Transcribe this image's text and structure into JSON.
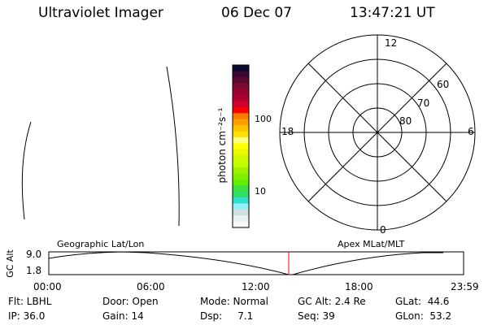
{
  "header": {
    "instrument": "Ultraviolet Imager",
    "date": "06 Dec 07",
    "time": "13:47:21 UT"
  },
  "colorbar": {
    "label": "photon cm⁻²s⁻¹",
    "ticks": [
      "100",
      "10"
    ],
    "colors": [
      "#0a0a30",
      "#3a0a30",
      "#5a0a30",
      "#7a0a30",
      "#9a0030",
      "#b00030",
      "#d00030",
      "#ff0000",
      "#ff7a00",
      "#ffa000",
      "#ffc000",
      "#ffe000",
      "#ffff80",
      "#ffff00",
      "#eaf800",
      "#d0f800",
      "#c0ff00",
      "#a0f000",
      "#80f000",
      "#60f000",
      "#40e040",
      "#30e060",
      "#30e0d0",
      "#90f0f8",
      "#d0e0e0",
      "#e8f0f0",
      "#f8f8f8"
    ]
  },
  "polar": {
    "mlt_labels": {
      "top": "12",
      "bottom": "0",
      "left": "18",
      "right": "6"
    },
    "lat_labels": [
      "60",
      "70",
      "80"
    ]
  },
  "timeline": {
    "left_label": "Geographic Lat/Lon",
    "right_label": "Apex MLat/MLT",
    "y_axis_label": "GC Alt",
    "y_ticks": [
      "9.0",
      "1.8"
    ],
    "x_ticks": [
      "00:00",
      "06:00",
      "12:00",
      "18:00",
      "23:59"
    ],
    "marker_color": "#ff0000"
  },
  "status": {
    "flt": "Flt: LBHL",
    "ip": "IP: 36.0",
    "door": "Door: Open",
    "gain": "Gain: 14",
    "mode": "Mode: Normal",
    "dsp": "Dsp:     7.1",
    "gcalt": "GC Alt: 2.4 Re",
    "seq": "Seq: 39",
    "glat": "GLat:  44.6",
    "glon": "GLon:  53.2"
  }
}
